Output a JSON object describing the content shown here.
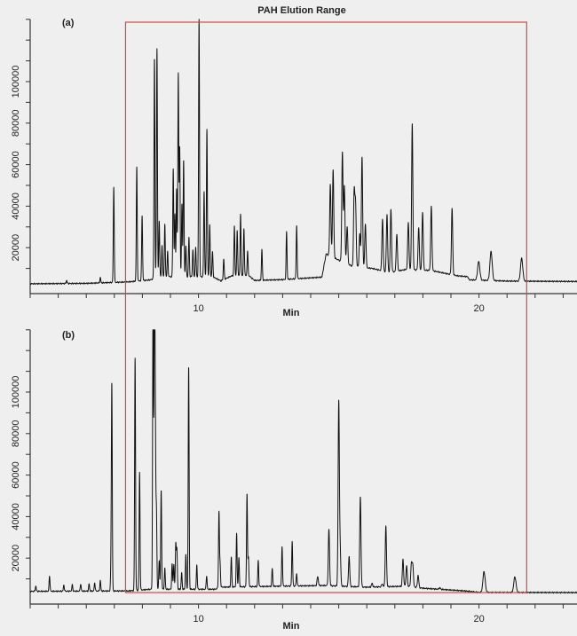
{
  "title": "PAH Elution Range",
  "colors": {
    "trace": "#111111",
    "range_box": "#d9444c",
    "background": "#efefef"
  },
  "chart_data": [
    {
      "type": "line",
      "panel_label": "(a)",
      "xlabel": "Min",
      "ylabel": "",
      "xlim": [
        4,
        23.5
      ],
      "ylim": [
        0,
        130000
      ],
      "x_tick_labels": [
        "10",
        "20"
      ],
      "y_tick_labels": [
        "20000",
        "40000",
        "60000",
        "80000",
        "100000"
      ],
      "grid": false,
      "highlight_range_min": [
        7.4,
        21.7
      ],
      "baseline": [
        [
          4,
          2600
        ],
        [
          6,
          2800
        ],
        [
          7.5,
          3500
        ],
        [
          8.3,
          4500
        ],
        [
          8.5,
          6000
        ],
        [
          10.5,
          6000
        ],
        [
          10.8,
          4000
        ],
        [
          11.2,
          6500
        ],
        [
          11.8,
          6500
        ],
        [
          12,
          4200
        ],
        [
          13,
          4600
        ],
        [
          14.4,
          5800
        ],
        [
          14.55,
          17000
        ],
        [
          15,
          14000
        ],
        [
          15.5,
          11000
        ],
        [
          16.2,
          10000
        ],
        [
          16.8,
          8000
        ],
        [
          17.4,
          9500
        ],
        [
          18.3,
          9000
        ],
        [
          19.2,
          6500
        ],
        [
          19.6,
          6000
        ],
        [
          19.65,
          4500
        ],
        [
          21,
          3900
        ],
        [
          23.5,
          3700
        ]
      ],
      "peaks": [
        [
          5.3,
          1500
        ],
        [
          6.5,
          2500
        ],
        [
          6.98,
          46000
        ],
        [
          7.8,
          54700
        ],
        [
          7.99,
          31600
        ],
        [
          8.43,
          106000
        ],
        [
          8.52,
          110000
        ],
        [
          8.6,
          27000
        ],
        [
          8.7,
          15000
        ],
        [
          8.8,
          25000
        ],
        [
          8.9,
          12000
        ],
        [
          9.1,
          52000
        ],
        [
          9.16,
          30000
        ],
        [
          9.22,
          42000
        ],
        [
          9.28,
          98000
        ],
        [
          9.33,
          62000
        ],
        [
          9.41,
          35000
        ],
        [
          9.47,
          56000
        ],
        [
          9.55,
          15000
        ],
        [
          9.66,
          19000
        ],
        [
          9.8,
          13000
        ],
        [
          9.9,
          14000
        ],
        [
          10.02,
          125000
        ],
        [
          10.2,
          41000
        ],
        [
          10.3,
          71000
        ],
        [
          10.4,
          25000
        ],
        [
          10.5,
          12000
        ],
        [
          10.9,
          10000
        ],
        [
          11.28,
          24000
        ],
        [
          11.38,
          22000
        ],
        [
          11.5,
          29500
        ],
        [
          11.62,
          22500
        ],
        [
          11.75,
          12000
        ],
        [
          12.26,
          15000
        ],
        [
          13.14,
          23000
        ],
        [
          13.5,
          25600
        ],
        [
          14.7,
          34600
        ],
        [
          14.8,
          42000
        ],
        [
          15.13,
          53000
        ],
        [
          15.2,
          37000
        ],
        [
          15.3,
          18000
        ],
        [
          15.55,
          36000
        ],
        [
          15.6,
          30000
        ],
        [
          15.75,
          16000
        ],
        [
          15.83,
          53000
        ],
        [
          15.95,
          21000
        ],
        [
          16.56,
          25000
        ],
        [
          16.72,
          27700
        ],
        [
          16.86,
          30300
        ],
        [
          17.07,
          18000
        ],
        [
          17.48,
          23000
        ],
        [
          17.62,
          70000
        ],
        [
          17.85,
          20500
        ],
        [
          17.99,
          28000
        ],
        [
          18.3,
          30800
        ],
        [
          19.04,
          32000
        ],
        [
          19.99,
          9000
        ],
        [
          20.43,
          14000
        ],
        [
          21.52,
          11000
        ]
      ]
    },
    {
      "type": "line",
      "panel_label": "(b)",
      "xlabel": "Min",
      "ylabel": "",
      "xlim": [
        4,
        23.5
      ],
      "ylim": [
        0,
        130000
      ],
      "x_tick_labels": [
        "10",
        "20"
      ],
      "y_tick_labels": [
        "20000",
        "40000",
        "60000",
        "80000",
        "100000"
      ],
      "grid": false,
      "highlight_range_min": [
        7.4,
        21.7
      ],
      "baseline": [
        [
          4,
          4000
        ],
        [
          7.5,
          4200
        ],
        [
          8.3,
          5000
        ],
        [
          10.6,
          5000
        ],
        [
          10.75,
          6000
        ],
        [
          13,
          6500
        ],
        [
          14.5,
          6800
        ],
        [
          16,
          6000
        ],
        [
          17.5,
          6500
        ],
        [
          18,
          5500
        ],
        [
          19.5,
          4200
        ],
        [
          20,
          3500
        ],
        [
          23.5,
          3400
        ]
      ],
      "peaks": [
        [
          4.2,
          2500
        ],
        [
          4.69,
          7500
        ],
        [
          5.2,
          3000
        ],
        [
          5.5,
          3000
        ],
        [
          5.8,
          3500
        ],
        [
          6.1,
          3500
        ],
        [
          6.3,
          4000
        ],
        [
          6.5,
          5000
        ],
        [
          6.91,
          98700
        ],
        [
          6.88,
          10000
        ],
        [
          7.74,
          112000
        ],
        [
          7.9,
          56700
        ],
        [
          8.38,
          140000
        ],
        [
          8.43,
          140000
        ],
        [
          8.46,
          77000
        ],
        [
          8.5,
          38000
        ],
        [
          8.6,
          14000
        ],
        [
          8.67,
          48000
        ],
        [
          8.8,
          10000
        ],
        [
          9.06,
          12000
        ],
        [
          9.12,
          12000
        ],
        [
          9.19,
          22000
        ],
        [
          9.23,
          19000
        ],
        [
          9.4,
          8000
        ],
        [
          9.55,
          17000
        ],
        [
          9.65,
          107500
        ],
        [
          9.94,
          11700
        ],
        [
          10.29,
          6500
        ],
        [
          10.73,
          36300
        ],
        [
          10.77,
          10700
        ],
        [
          11.17,
          14500
        ],
        [
          11.36,
          25700
        ],
        [
          11.44,
          14000
        ],
        [
          11.73,
          45000
        ],
        [
          11.78,
          14000
        ],
        [
          12.13,
          12500
        ],
        [
          12.63,
          8700
        ],
        [
          12.98,
          19000
        ],
        [
          13.34,
          21500
        ],
        [
          13.5,
          6000
        ],
        [
          14.25,
          4500
        ],
        [
          14.65,
          27000
        ],
        [
          15.0,
          88000
        ],
        [
          15.05,
          17000
        ],
        [
          15.37,
          14500
        ],
        [
          15.77,
          43500
        ],
        [
          16.19,
          1800
        ],
        [
          16.55,
          1500
        ],
        [
          16.68,
          29000
        ],
        [
          17.29,
          13000
        ],
        [
          17.42,
          10000
        ],
        [
          17.59,
          11000
        ],
        [
          17.64,
          10500
        ],
        [
          17.83,
          6000
        ],
        [
          18.6,
          800
        ],
        [
          20.18,
          10000
        ],
        [
          21.28,
          7500
        ]
      ]
    }
  ]
}
